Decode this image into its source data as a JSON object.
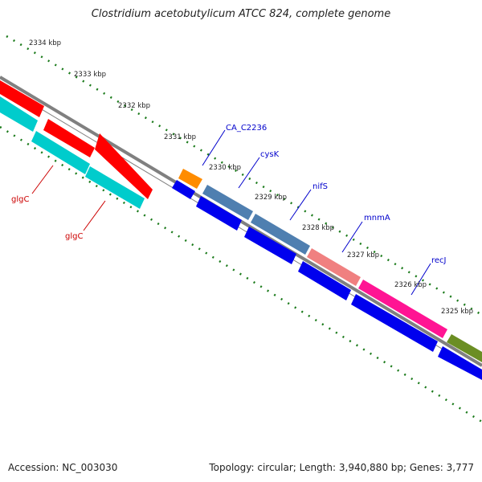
{
  "title": "Clostridium acetobutylicum ATCC 824, complete genome",
  "footer": {
    "accession": "Accession: NC_003030",
    "summary": "Topology: circular; Length: 3,940,880 bp; Genes: 3,777"
  },
  "ticks": [
    "2334 kbp",
    "2333 kbp",
    "2332 kbp",
    "2331 kbp",
    "2330 kbp",
    "2329 kbp",
    "2328 kbp",
    "2327 kbp",
    "2326 kbp",
    "2325 kbp"
  ],
  "gene_labels": [
    {
      "name": "CA_C2236",
      "color": "#0000cc"
    },
    {
      "name": "cysK",
      "color": "#0000cc"
    },
    {
      "name": "nifS",
      "color": "#0000cc"
    },
    {
      "name": "mnmA",
      "color": "#0000cc"
    },
    {
      "name": "recJ",
      "color": "#0000cc"
    },
    {
      "name": "glgC",
      "color": "#cc0000"
    },
    {
      "name": "glgC",
      "color": "#cc0000"
    }
  ],
  "colors": {
    "backbone": "#808080",
    "tick_dots": "#1a7a1a",
    "red": "#ff0000",
    "cyan": "#00cccc",
    "blue": "#0000ee",
    "orange": "#ff8c00",
    "steelblue": "#4f7fb0",
    "salmon": "#f08080",
    "magenta": "#ff1493",
    "olive": "#6b8e23"
  }
}
